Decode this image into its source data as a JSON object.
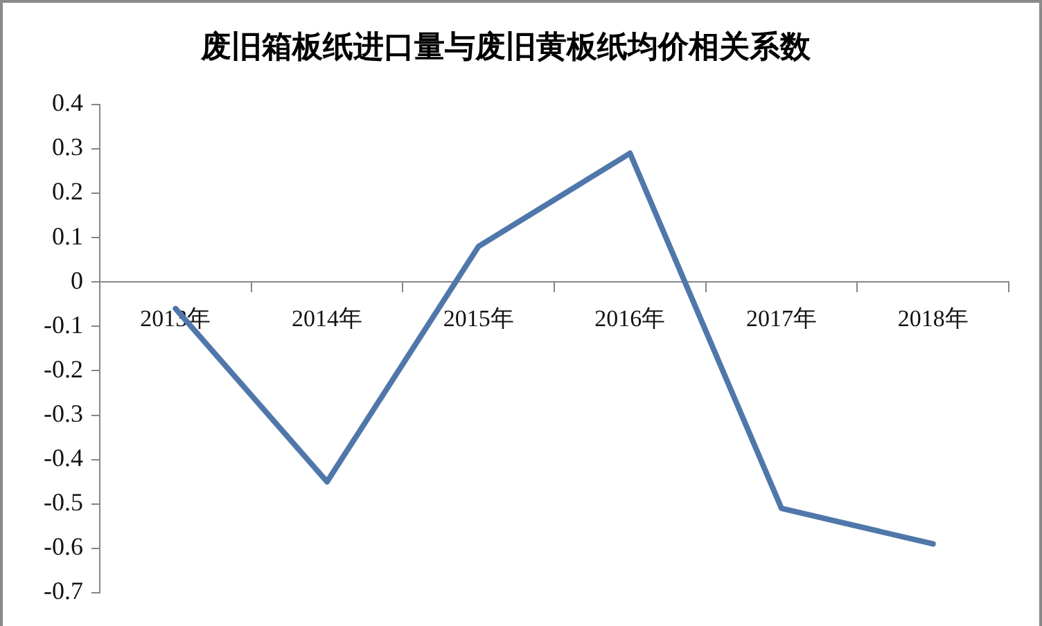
{
  "chart_data": {
    "type": "line",
    "title": "废旧箱板纸进口量与废旧黄板纸均价相关系数",
    "categories": [
      "2013年",
      "2014年",
      "2015年",
      "2016年",
      "2017年",
      "2018年"
    ],
    "series": [
      {
        "color": "#4f77aa",
        "values": [
          -0.06,
          -0.45,
          0.08,
          0.29,
          -0.51,
          -0.59
        ]
      }
    ],
    "ylim": [
      -0.7,
      0.4
    ],
    "yticks": [
      -0.7,
      -0.6,
      -0.5,
      -0.4,
      -0.3,
      -0.2,
      -0.1,
      0,
      0.1,
      0.2,
      0.3,
      0.4
    ],
    "grid": false,
    "legend": false,
    "marker": "none",
    "line_style": "solid"
  }
}
